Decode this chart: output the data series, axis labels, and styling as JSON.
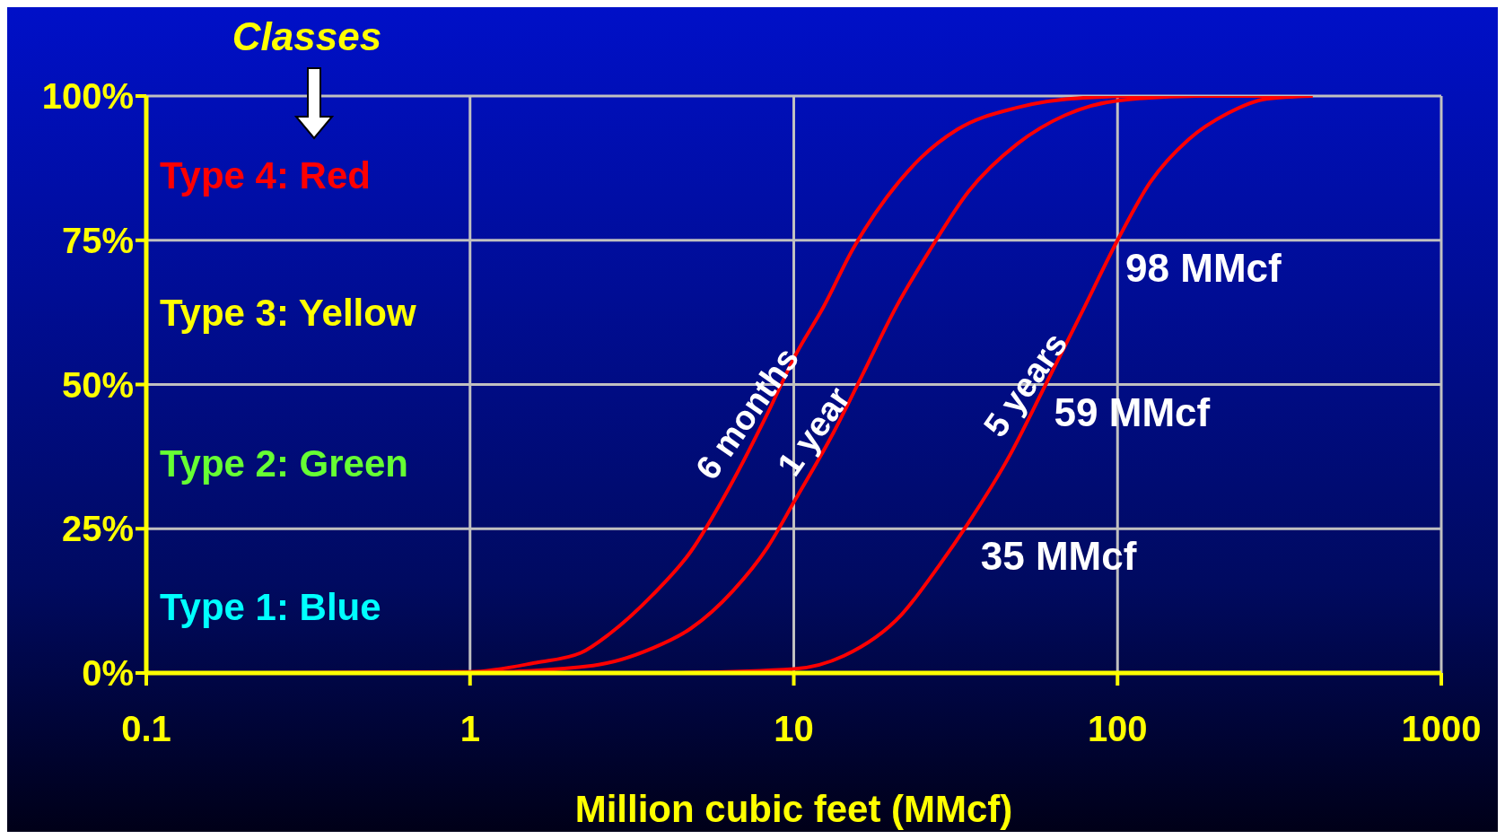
{
  "chart_data": {
    "type": "line",
    "xlabel": "Million cubic feet (MMcf)",
    "log": "x",
    "grid": true,
    "marker": "none",
    "line_style": "solid",
    "xlim": [
      0.1,
      1000
    ],
    "xticks": [
      0.1,
      1,
      10,
      100,
      1000
    ],
    "ylim": [
      0,
      100
    ],
    "yticks": [
      {
        "value": 0,
        "label": "0%"
      },
      {
        "value": 25,
        "label": "25%"
      },
      {
        "value": 50,
        "label": "50%"
      },
      {
        "value": 75,
        "label": "75%"
      },
      {
        "value": 100,
        "label": "100%"
      }
    ],
    "series": [
      {
        "name": "6 months",
        "color": "#ff0000",
        "x": [
          0.22,
          1,
          1.6,
          2.2,
          2.7,
          3.66,
          4.8,
          6.3,
          8.3,
          10.1,
          12.4,
          15.2,
          19.4,
          24.6,
          32,
          49,
          79,
          126,
          400
        ],
        "values": [
          0,
          0.2,
          1.8,
          3.5,
          6.8,
          13.5,
          21,
          32,
          45,
          55,
          63.6,
          73.4,
          82.5,
          89.2,
          94.2,
          98,
          99.7,
          100,
          100
        ]
      },
      {
        "name": "1 year",
        "color": "#ff0000",
        "x": [
          1,
          2.4,
          3.66,
          4.8,
          6.5,
          8.3,
          10.1,
          13.3,
          16.3,
          20.7,
          26.4,
          34.6,
          49,
          69,
          100,
          178,
          400
        ],
        "values": [
          0,
          1.3,
          4.3,
          7.7,
          14.3,
          21.8,
          30,
          41.8,
          51.7,
          63.4,
          73.4,
          83.4,
          91.7,
          96.7,
          99.2,
          100,
          100
        ]
      },
      {
        "name": "5 years",
        "color": "#ff0000",
        "x": [
          4.2,
          10,
          14.3,
          21.5,
          28,
          34.6,
          45.5,
          60,
          79,
          100,
          126,
          166,
          219,
          288,
          400
        ],
        "values": [
          0,
          0.7,
          3,
          10.1,
          18.5,
          26,
          36.8,
          50,
          63.4,
          75,
          85,
          92.5,
          97,
          99.5,
          100
        ]
      }
    ],
    "annotations": [
      "Classes",
      "Type 4: Red",
      "Type 3: Yellow",
      "Type 2: Green",
      "Type 1: Blue",
      {
        "text": "35 MMcf",
        "x": 35,
        "y": 25
      },
      {
        "text": "59 MMcf",
        "x": 59,
        "y": 50
      },
      {
        "text": "98 MMcf",
        "x": 98,
        "y": 75
      }
    ]
  }
}
